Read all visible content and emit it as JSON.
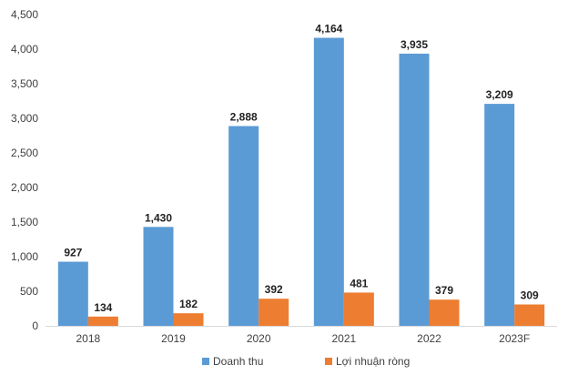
{
  "chart_data": {
    "type": "bar",
    "categories": [
      "2018",
      "2019",
      "2020",
      "2021",
      "2022",
      "2023F"
    ],
    "series": [
      {
        "name": "Doanh thu",
        "color": "#5B9BD5",
        "values": [
          927,
          1430,
          2888,
          4164,
          3935,
          3209
        ],
        "value_labels": [
          "927",
          "1,430",
          "2,888",
          "4,164",
          "3,935",
          "3,209"
        ]
      },
      {
        "name": "Lợi nhuận ròng",
        "color": "#ED7D31",
        "values": [
          134,
          182,
          392,
          481,
          379,
          309
        ],
        "value_labels": [
          "134",
          "182",
          "392",
          "481",
          "379",
          "309"
        ]
      }
    ],
    "ylim": [
      0,
      4500
    ],
    "yticks": [
      0,
      500,
      1000,
      1500,
      2000,
      2500,
      3000,
      3500,
      4000,
      4500
    ],
    "ytick_labels": [
      "0",
      "500",
      "1,000",
      "1,500",
      "2,000",
      "2,500",
      "3,000",
      "3,500",
      "4,000",
      "4,500"
    ],
    "grid": false,
    "legend": "bottom"
  }
}
